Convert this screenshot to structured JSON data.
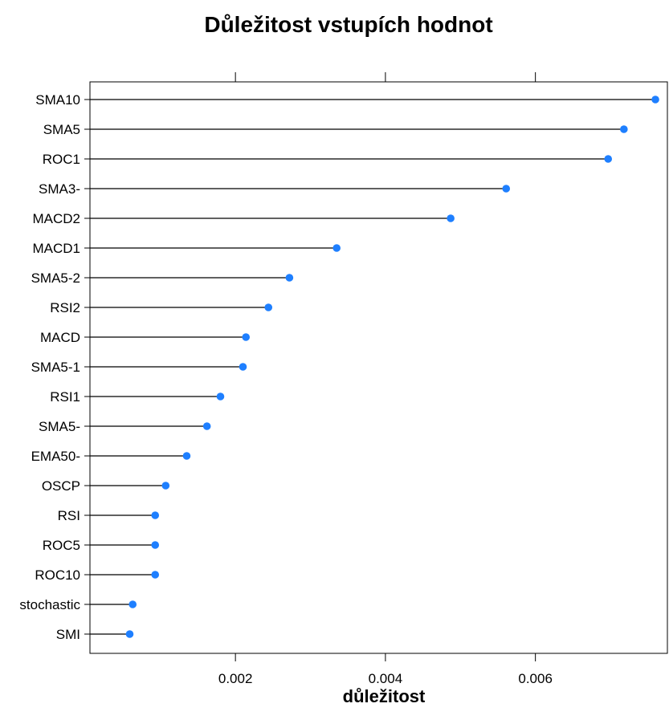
{
  "chart_data": {
    "type": "dot",
    "title": "Důležitost vstupích hodnot",
    "xlabel": "důležitost",
    "ylabel": "",
    "xlim": [
      6e-05,
      0.00776
    ],
    "x_ticks": [
      0.002,
      0.004,
      0.006
    ],
    "x_tick_labels": [
      "0.002",
      "0.004",
      "0.006"
    ],
    "grid": false,
    "colors": {
      "point": "#1e7fff",
      "line": "#000000",
      "axis": "#000000"
    },
    "categories": [
      "SMA10",
      "SMA5",
      "ROC1",
      "SMA3-",
      "MACD2",
      "MACD1",
      "SMA5-2",
      "RSI2",
      "MACD",
      "SMA5-1",
      "RSI1",
      "SMA5-",
      "EMA50-",
      "OSCP",
      "RSI",
      "ROC5",
      "ROC10",
      "stochastic",
      "SMI"
    ],
    "values": [
      0.0076,
      0.00718,
      0.00697,
      0.00561,
      0.00487,
      0.00335,
      0.00272,
      0.00244,
      0.00214,
      0.0021,
      0.0018,
      0.00162,
      0.00135,
      0.00107,
      0.00093,
      0.00093,
      0.00093,
      0.00063,
      0.00059
    ]
  }
}
